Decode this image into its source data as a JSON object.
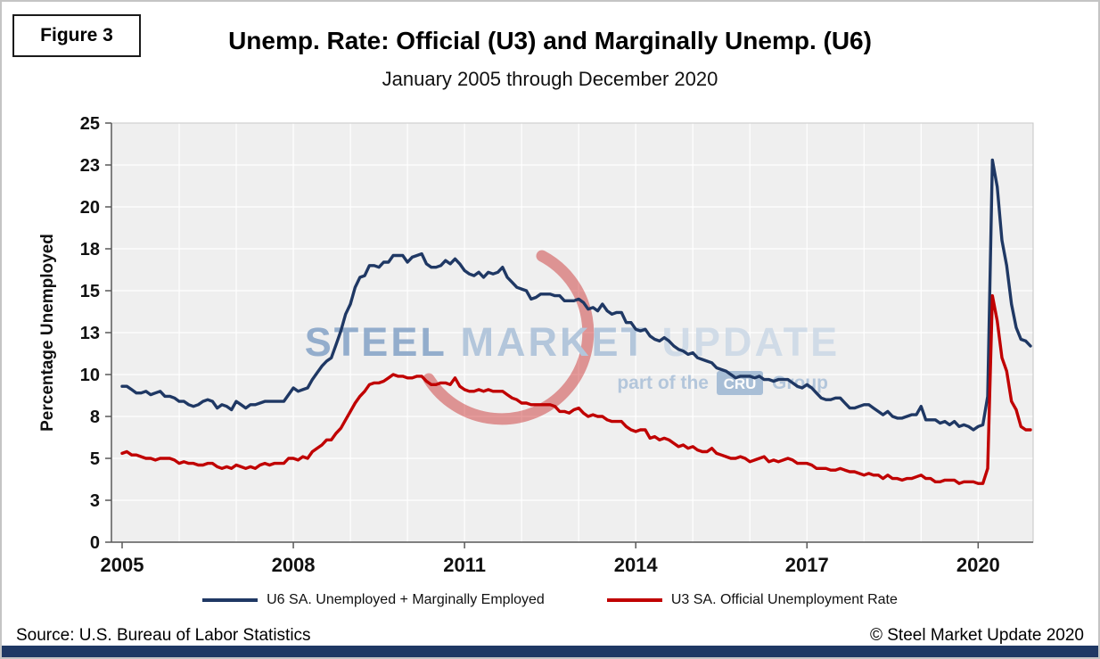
{
  "figure_label": "Figure 3",
  "title": "Unemp. Rate: Official (U3) and Marginally Unemp. (U6)",
  "subtitle": "January 2005 through December 2020",
  "footer": {
    "source": "Source: U.S. Bureau  of Labor Statistics",
    "copyright": "© Steel Market Update 2020"
  },
  "watermark": {
    "word1": "STEEL",
    "word2": " MARKET",
    "word3": " UPDATE",
    "tagline_pre": "part of the",
    "tagline_box": "CRU",
    "tagline_post": "Group"
  },
  "colors": {
    "u6_navy": "#1F3864",
    "u3_red": "#C00000",
    "bottom_bar": "#1F3864",
    "plot_bg": "#EFEFEF",
    "grid": "#FFFFFF",
    "axis": "#595959",
    "plot_border": "#C6C6C6",
    "watermark_steel": "#84A2C6",
    "watermark_market": "#A9BFD8",
    "watermark_update": "#CBD8E6",
    "watermark_red": "#C00000",
    "cru_box": "#9CB6D2"
  },
  "chart_data": {
    "type": "line",
    "title": "Unemp. Rate: Official (U3) and Marginally Unemp. (U6)",
    "subtitle": "January 2005 through December 2020",
    "xlabel": "",
    "ylabel": "Percentage Unemployed",
    "ylim": [
      0,
      25
    ],
    "grid": true,
    "legend_position": "bottom",
    "x_start": "2005-01",
    "x_end": "2020-12",
    "x_frequency": "monthly",
    "x_tick_labels": [
      "2005",
      "2008",
      "2011",
      "2014",
      "2017",
      "2020"
    ],
    "x_tick_month_indices": [
      0,
      36,
      72,
      108,
      144,
      180
    ],
    "y_tick_values": [
      0,
      2.5,
      5,
      7.5,
      10,
      12.5,
      15,
      17.5,
      20,
      22.5,
      25
    ],
    "y_tick_labels": [
      "0",
      "3",
      "5",
      "8",
      "10",
      "13",
      "15",
      "18",
      "20",
      "23",
      "25"
    ],
    "series": [
      {
        "name": "U6 SA. Unemployed + Marginally Employed",
        "color": "#1F3864",
        "values": [
          9.3,
          9.3,
          9.1,
          8.9,
          8.9,
          9.0,
          8.8,
          8.9,
          9.0,
          8.7,
          8.7,
          8.6,
          8.4,
          8.4,
          8.2,
          8.1,
          8.2,
          8.4,
          8.5,
          8.4,
          8.0,
          8.2,
          8.1,
          7.9,
          8.4,
          8.2,
          8.0,
          8.2,
          8.2,
          8.3,
          8.4,
          8.4,
          8.4,
          8.4,
          8.4,
          8.8,
          9.2,
          9.0,
          9.1,
          9.2,
          9.7,
          10.1,
          10.5,
          10.8,
          11.0,
          11.8,
          12.6,
          13.6,
          14.2,
          15.2,
          15.8,
          15.9,
          16.5,
          16.5,
          16.4,
          16.7,
          16.7,
          17.1,
          17.1,
          17.1,
          16.7,
          17.0,
          17.1,
          17.2,
          16.6,
          16.4,
          16.4,
          16.5,
          16.8,
          16.6,
          16.9,
          16.6,
          16.2,
          16.0,
          15.9,
          16.1,
          15.8,
          16.1,
          16.0,
          16.1,
          16.4,
          15.8,
          15.5,
          15.2,
          15.1,
          15.0,
          14.5,
          14.6,
          14.8,
          14.8,
          14.8,
          14.7,
          14.7,
          14.4,
          14.4,
          14.4,
          14.5,
          14.3,
          13.9,
          14.0,
          13.8,
          14.2,
          13.8,
          13.6,
          13.7,
          13.7,
          13.1,
          13.1,
          12.7,
          12.6,
          12.7,
          12.3,
          12.1,
          12.0,
          12.2,
          12.0,
          11.7,
          11.5,
          11.4,
          11.2,
          11.3,
          11.0,
          10.9,
          10.8,
          10.7,
          10.4,
          10.3,
          10.2,
          10.0,
          9.8,
          9.9,
          9.9,
          9.9,
          9.8,
          9.9,
          9.7,
          9.7,
          9.6,
          9.7,
          9.7,
          9.7,
          9.5,
          9.3,
          9.2,
          9.4,
          9.2,
          8.9,
          8.6,
          8.5,
          8.5,
          8.6,
          8.6,
          8.3,
          8.0,
          8.0,
          8.1,
          8.2,
          8.2,
          8.0,
          7.8,
          7.6,
          7.8,
          7.5,
          7.4,
          7.4,
          7.5,
          7.6,
          7.6,
          8.1,
          7.3,
          7.3,
          7.3,
          7.1,
          7.2,
          7.0,
          7.2,
          6.9,
          7.0,
          6.9,
          6.7,
          6.9,
          7.0,
          8.7,
          22.8,
          21.2,
          18.0,
          16.5,
          14.2,
          12.8,
          12.1,
          12.0,
          11.7
        ]
      },
      {
        "name": "U3 SA. Official Unemployment Rate",
        "color": "#C00000",
        "values": [
          5.3,
          5.4,
          5.2,
          5.2,
          5.1,
          5.0,
          5.0,
          4.9,
          5.0,
          5.0,
          5.0,
          4.9,
          4.7,
          4.8,
          4.7,
          4.7,
          4.6,
          4.6,
          4.7,
          4.7,
          4.5,
          4.4,
          4.5,
          4.4,
          4.6,
          4.5,
          4.4,
          4.5,
          4.4,
          4.6,
          4.7,
          4.6,
          4.7,
          4.7,
          4.7,
          5.0,
          5.0,
          4.9,
          5.1,
          5.0,
          5.4,
          5.6,
          5.8,
          6.1,
          6.1,
          6.5,
          6.8,
          7.3,
          7.8,
          8.3,
          8.7,
          9.0,
          9.4,
          9.5,
          9.5,
          9.6,
          9.8,
          10.0,
          9.9,
          9.9,
          9.8,
          9.8,
          9.9,
          9.9,
          9.6,
          9.4,
          9.4,
          9.5,
          9.5,
          9.4,
          9.8,
          9.3,
          9.1,
          9.0,
          9.0,
          9.1,
          9.0,
          9.1,
          9.0,
          9.0,
          9.0,
          8.8,
          8.6,
          8.5,
          8.3,
          8.3,
          8.2,
          8.2,
          8.2,
          8.2,
          8.2,
          8.1,
          7.8,
          7.8,
          7.7,
          7.9,
          8.0,
          7.7,
          7.5,
          7.6,
          7.5,
          7.5,
          7.3,
          7.2,
          7.2,
          7.2,
          6.9,
          6.7,
          6.6,
          6.7,
          6.7,
          6.2,
          6.3,
          6.1,
          6.2,
          6.1,
          5.9,
          5.7,
          5.8,
          5.6,
          5.7,
          5.5,
          5.4,
          5.4,
          5.6,
          5.3,
          5.2,
          5.1,
          5.0,
          5.0,
          5.1,
          5.0,
          4.8,
          4.9,
          5.0,
          5.1,
          4.8,
          4.9,
          4.8,
          4.9,
          5.0,
          4.9,
          4.7,
          4.7,
          4.7,
          4.6,
          4.4,
          4.4,
          4.4,
          4.3,
          4.3,
          4.4,
          4.3,
          4.2,
          4.2,
          4.1,
          4.0,
          4.1,
          4.0,
          4.0,
          3.8,
          4.0,
          3.8,
          3.8,
          3.7,
          3.8,
          3.8,
          3.9,
          4.0,
          3.8,
          3.8,
          3.6,
          3.6,
          3.7,
          3.7,
          3.7,
          3.5,
          3.6,
          3.6,
          3.6,
          3.5,
          3.5,
          4.4,
          14.7,
          13.2,
          11.0,
          10.2,
          8.4,
          7.9,
          6.9,
          6.7,
          6.7
        ]
      }
    ]
  }
}
